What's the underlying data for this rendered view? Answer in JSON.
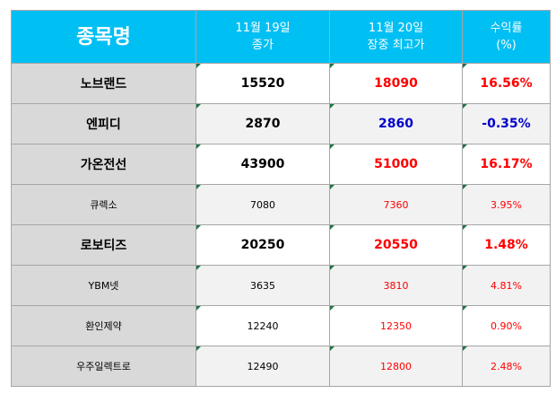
{
  "header": {
    "name": "종목명",
    "close_line1": "11월 19일",
    "close_line2": "종가",
    "high_line1": "11월 20일",
    "high_line2": "장중 최고가",
    "return_line1": "수익률",
    "return_line2": "(%)"
  },
  "colors": {
    "header_bg": "#00bff3",
    "name_bg": "#d9d9d9",
    "positive": "#ff0000",
    "negative": "#0000cc",
    "comment_marker": "#217346"
  },
  "rows": [
    {
      "name": "노브랜드",
      "close": "15520",
      "high": "18090",
      "ret": "16.56%"
    },
    {
      "name": "엔피디",
      "close": "2870",
      "high": "2860",
      "ret": "-0.35%"
    },
    {
      "name": "가온전선",
      "close": "43900",
      "high": "51000",
      "ret": "16.17%"
    },
    {
      "name": "큐렉소",
      "close": "7080",
      "high": "7360",
      "ret": "3.95%"
    },
    {
      "name": "로보티즈",
      "close": "20250",
      "high": "20550",
      "ret": "1.48%"
    },
    {
      "name": "YBM넷",
      "close": "3635",
      "high": "3810",
      "ret": "4.81%"
    },
    {
      "name": "환인제약",
      "close": "12240",
      "high": "12350",
      "ret": "0.90%"
    },
    {
      "name": "우주일렉트로",
      "close": "12490",
      "high": "12800",
      "ret": "2.48%"
    }
  ]
}
